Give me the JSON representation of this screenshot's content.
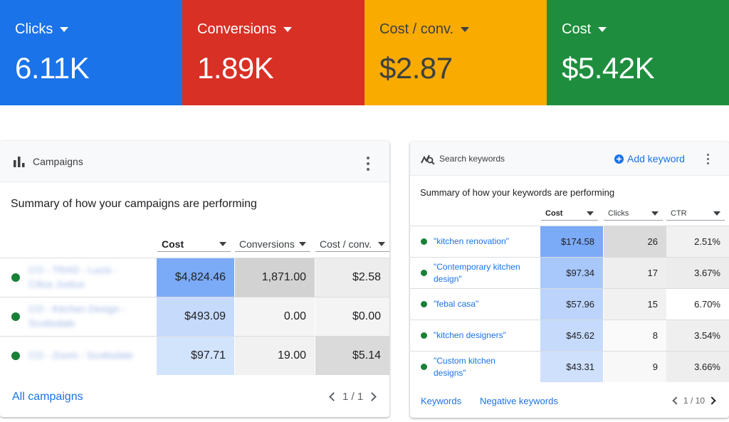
{
  "kpis": [
    {
      "label": "Clicks",
      "value": "6.11K",
      "color": "#1a73e8"
    },
    {
      "label": "Conversions",
      "value": "1.89K",
      "color": "#d93025"
    },
    {
      "label": "Cost / conv.",
      "value": "$2.87",
      "color": "#f9ab00"
    },
    {
      "label": "Cost",
      "value": "$5.42K",
      "color": "#1e8e3e"
    }
  ],
  "campaigns": {
    "title": "Campaigns",
    "icon": "bar-chart-icon",
    "subtitle": "Summary of how your campaigns are performing",
    "columns": [
      "Cost",
      "Conversions",
      "Cost / conv."
    ],
    "rows": [
      {
        "name_line1": "CO - TRAD - Lucis -",
        "name_line2": "Cilius Justus",
        "cost": "$4,824.46",
        "conversions": "1,871.00",
        "cost_per_conv": "$2.58"
      },
      {
        "name_line1": "CO - Kitchen Design -",
        "name_line2": "Scottsdale",
        "cost": "$493.09",
        "conversions": "0.00",
        "cost_per_conv": "$0.00"
      },
      {
        "name_line1": "CO - Zoom - Scottsdale",
        "name_line2": "",
        "cost": "$97.71",
        "conversions": "19.00",
        "cost_per_conv": "$5.14"
      }
    ],
    "footer_link": "All campaigns",
    "pagination": "1 / 1"
  },
  "keywords": {
    "title": "Search keywords",
    "icon": "search-keywords-icon",
    "add_label": "Add keyword",
    "subtitle": "Summary of how your keywords are performing",
    "columns": [
      "Cost",
      "Clicks",
      "CTR"
    ],
    "rows": [
      {
        "keyword_line1": "\"kitchen renovation\"",
        "keyword_line2": "",
        "cost": "$174.58",
        "clicks": "26",
        "ctr": "2.51%"
      },
      {
        "keyword_line1": "\"Contemporary kitchen",
        "keyword_line2": "design\"",
        "cost": "$97.34",
        "clicks": "17",
        "ctr": "3.67%"
      },
      {
        "keyword_line1": "\"febal casa\"",
        "keyword_line2": "",
        "cost": "$57.96",
        "clicks": "15",
        "ctr": "6.70%"
      },
      {
        "keyword_line1": "\"kitchen designers\"",
        "keyword_line2": "",
        "cost": "$45.62",
        "clicks": "8",
        "ctr": "3.54%"
      },
      {
        "keyword_line1": "\"Custom kitchen",
        "keyword_line2": "designs\"",
        "cost": "$43.31",
        "clicks": "9",
        "ctr": "3.66%"
      }
    ],
    "footer_links": [
      "Keywords",
      "Negative keywords"
    ],
    "pagination": "1 / 10"
  }
}
